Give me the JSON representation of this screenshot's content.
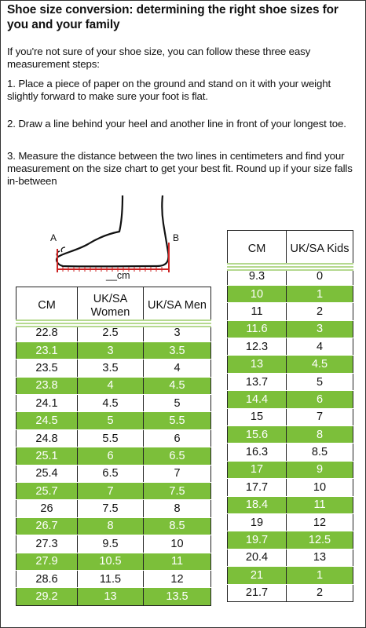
{
  "title": "Shoe size conversion: determining the right shoe sizes for you and your family",
  "intro": "If you're not sure of your shoe size, you can follow these three easy measurement steps:",
  "steps": [
    "1. Place a piece of paper on the ground and stand on it with your weight slightly forward to make sure your foot is flat.",
    "2. Draw a line behind your heel and another line in front of your longest toe.",
    "3. Measure the distance between the two lines in centimeters and find your measurement on the size chart to get your best fit. Round up if your size falls in-between"
  ],
  "diagram": {
    "label_a": "A",
    "label_b": "B",
    "label_cm": "__cm"
  },
  "colors": {
    "row_green": "#7cbf3a",
    "separator": "#b5d98f",
    "measure_line": "#cc2222"
  },
  "adult_table": {
    "headers": [
      "CM",
      "UK/SA Women",
      "UK/SA Men"
    ],
    "rows": [
      [
        "22.8",
        "2.5",
        "3"
      ],
      [
        "23.1",
        "3",
        "3.5"
      ],
      [
        "23.5",
        "3.5",
        "4"
      ],
      [
        "23.8",
        "4",
        "4.5"
      ],
      [
        "24.1",
        "4.5",
        "5"
      ],
      [
        "24.5",
        "5",
        "5.5"
      ],
      [
        "24.8",
        "5.5",
        "6"
      ],
      [
        "25.1",
        "6",
        "6.5"
      ],
      [
        "25.4",
        "6.5",
        "7"
      ],
      [
        "25.7",
        "7",
        "7.5"
      ],
      [
        "26",
        "7.5",
        "8"
      ],
      [
        "26.7",
        "8",
        "8.5"
      ],
      [
        "27.3",
        "9.5",
        "10"
      ],
      [
        "27.9",
        "10.5",
        "11"
      ],
      [
        "28.6",
        "11.5",
        "12"
      ],
      [
        "29.2",
        "13",
        "13.5"
      ]
    ]
  },
  "kids_table": {
    "headers": [
      "CM",
      "UK/SA Kids"
    ],
    "rows": [
      [
        "9.3",
        "0"
      ],
      [
        "10",
        "1"
      ],
      [
        "11",
        "2"
      ],
      [
        "11.6",
        "3"
      ],
      [
        "12.3",
        "4"
      ],
      [
        "13",
        "4.5"
      ],
      [
        "13.7",
        "5"
      ],
      [
        "14.4",
        "6"
      ],
      [
        "15",
        "7"
      ],
      [
        "15.6",
        "8"
      ],
      [
        "16.3",
        "8.5"
      ],
      [
        "17",
        "9"
      ],
      [
        "17.7",
        "10"
      ],
      [
        "18.4",
        "11"
      ],
      [
        "19",
        "12"
      ],
      [
        "19.7",
        "12.5"
      ],
      [
        "20.4",
        "13"
      ],
      [
        "21",
        "1"
      ],
      [
        "21.7",
        "2"
      ]
    ]
  }
}
